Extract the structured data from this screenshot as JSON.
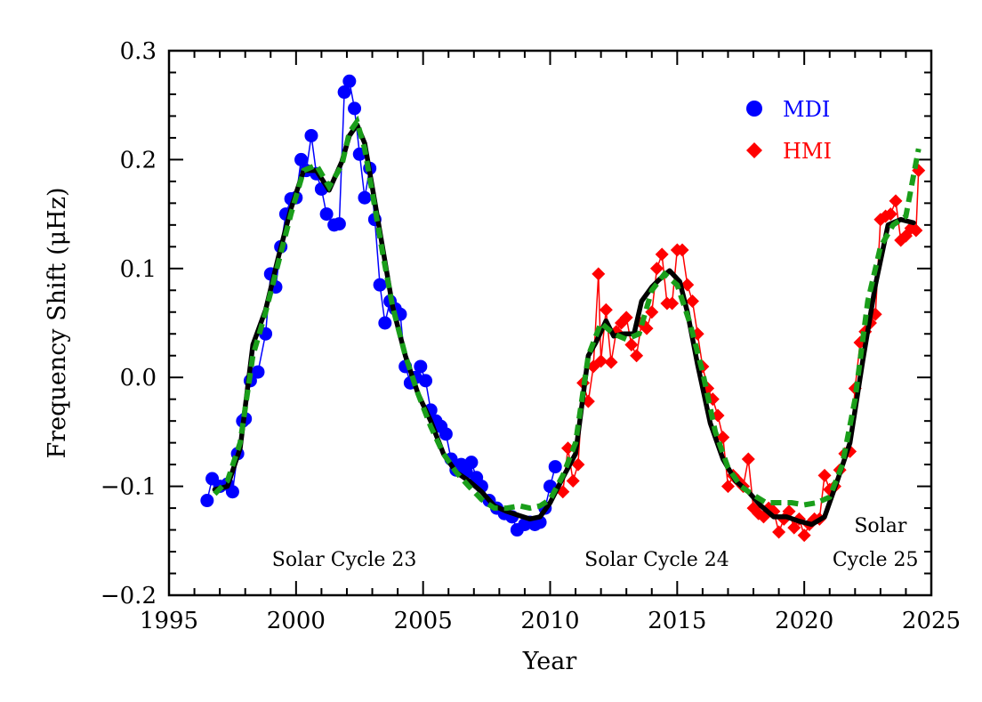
{
  "chart_data": {
    "type": "line",
    "xlabel": "Year",
    "ylabel": "Frequency Shift (μHz)",
    "xlim": [
      1995,
      2025
    ],
    "ylim": [
      -0.2,
      0.3
    ],
    "x_ticks": [
      1995,
      2000,
      2005,
      2010,
      2015,
      2020,
      2025
    ],
    "x_tick_labels": [
      "1995",
      "2000",
      "2005",
      "2010",
      "2015",
      "2020",
      "2025"
    ],
    "y_ticks": [
      -0.2,
      -0.1,
      0.0,
      0.1,
      0.2,
      0.3
    ],
    "y_tick_labels": [
      "−0.2",
      "−0.1",
      "0.0",
      "0.1",
      "0.2",
      "0.3"
    ],
    "grid": false,
    "legend_position": "top-right",
    "annotations": [
      {
        "text": "Solar Cycle 23",
        "x": 2001.9,
        "y": -0.173
      },
      {
        "text": "Solar Cycle 24",
        "x": 2014.2,
        "y": -0.173
      },
      {
        "text": "Solar",
        "x": 2023.0,
        "y": -0.142
      },
      {
        "text": "Cycle 25",
        "x": 2022.8,
        "y": -0.173
      }
    ],
    "series": [
      {
        "name": "MDI",
        "color": "#0000ff",
        "marker": "circle",
        "x": [
          1996.5,
          1996.7,
          1997.0,
          1997.3,
          1997.5,
          1997.7,
          1997.9,
          1998.0,
          1998.2,
          1998.5,
          1998.8,
          1999.0,
          1999.2,
          1999.4,
          1999.6,
          1999.8,
          2000.0,
          2000.2,
          2000.4,
          2000.6,
          2000.8,
          2001.0,
          2001.2,
          2001.5,
          2001.7,
          2001.9,
          2002.1,
          2002.3,
          2002.5,
          2002.7,
          2002.9,
          2003.1,
          2003.3,
          2003.5,
          2003.7,
          2003.9,
          2004.1,
          2004.3,
          2004.5,
          2004.7,
          2004.9,
          2005.1,
          2005.3,
          2005.5,
          2005.7,
          2005.9,
          2006.1,
          2006.3,
          2006.5,
          2006.7,
          2006.9,
          2007.1,
          2007.3,
          2007.6,
          2007.9,
          2008.2,
          2008.5,
          2008.7,
          2009.0,
          2009.2,
          2009.4,
          2009.6,
          2009.8,
          2010.0,
          2010.2
        ],
        "y": [
          -0.113,
          -0.093,
          -0.1,
          -0.098,
          -0.105,
          -0.07,
          -0.04,
          -0.038,
          -0.003,
          0.005,
          0.04,
          0.095,
          0.083,
          0.12,
          0.15,
          0.164,
          0.165,
          0.2,
          0.19,
          0.222,
          0.187,
          0.173,
          0.15,
          0.14,
          0.141,
          0.262,
          0.272,
          0.247,
          0.205,
          0.165,
          0.192,
          0.145,
          0.085,
          0.05,
          0.07,
          0.063,
          0.058,
          0.01,
          -0.005,
          0.0,
          0.01,
          -0.003,
          -0.03,
          -0.04,
          -0.045,
          -0.052,
          -0.075,
          -0.085,
          -0.08,
          -0.087,
          -0.078,
          -0.092,
          -0.1,
          -0.113,
          -0.12,
          -0.125,
          -0.128,
          -0.14,
          -0.135,
          -0.133,
          -0.135,
          -0.133,
          -0.12,
          -0.1,
          -0.082
        ]
      },
      {
        "name": "HMI",
        "color": "#ff0000",
        "marker": "diamond",
        "x": [
          2010.5,
          2010.7,
          2010.9,
          2011.1,
          2011.3,
          2011.5,
          2011.7,
          2011.9,
          2012.0,
          2012.2,
          2012.4,
          2012.6,
          2012.8,
          2013.0,
          2013.2,
          2013.4,
          2013.6,
          2013.8,
          2014.0,
          2014.2,
          2014.4,
          2014.6,
          2014.8,
          2015.0,
          2015.2,
          2015.4,
          2015.6,
          2015.8,
          2016.0,
          2016.2,
          2016.4,
          2016.6,
          2016.8,
          2017.0,
          2017.2,
          2017.4,
          2017.6,
          2017.8,
          2018.0,
          2018.2,
          2018.4,
          2018.6,
          2018.8,
          2019.0,
          2019.2,
          2019.4,
          2019.6,
          2019.8,
          2020.0,
          2020.2,
          2020.4,
          2020.6,
          2020.8,
          2021.0,
          2021.2,
          2021.4,
          2021.6,
          2021.8,
          2022.0,
          2022.2,
          2022.4,
          2022.6,
          2022.8,
          2023.0,
          2023.2,
          2023.4,
          2023.6,
          2023.8,
          2024.0,
          2024.2,
          2024.4,
          2024.5
        ],
        "y": [
          -0.105,
          -0.065,
          -0.095,
          -0.08,
          -0.005,
          -0.022,
          0.01,
          0.095,
          0.015,
          0.062,
          0.014,
          0.042,
          0.05,
          0.055,
          0.03,
          0.02,
          0.05,
          0.045,
          0.06,
          0.1,
          0.113,
          0.068,
          0.068,
          0.117,
          0.117,
          0.085,
          0.07,
          0.04,
          0.01,
          -0.01,
          -0.02,
          -0.035,
          -0.055,
          -0.1,
          -0.09,
          -0.095,
          -0.1,
          -0.075,
          -0.12,
          -0.125,
          -0.128,
          -0.12,
          -0.123,
          -0.142,
          -0.13,
          -0.123,
          -0.138,
          -0.13,
          -0.145,
          -0.135,
          -0.13,
          -0.13,
          -0.09,
          -0.103,
          -0.1,
          -0.085,
          -0.07,
          -0.068,
          -0.01,
          0.032,
          0.042,
          0.05,
          0.058,
          0.145,
          0.148,
          0.15,
          0.162,
          0.126,
          0.13,
          0.137,
          0.135,
          0.19
        ]
      },
      {
        "name": "",
        "color": "#000000",
        "style": "solid",
        "x": [
          1996.8,
          1997.3,
          1997.8,
          1998.3,
          1998.8,
          1999.3,
          1999.8,
          2000.3,
          2000.8,
          2001.3,
          2001.8,
          2002.1,
          2002.4,
          2002.7,
          2003.0,
          2003.4,
          2003.8,
          2004.3,
          2004.8,
          2005.3,
          2005.8,
          2006.3,
          2006.8,
          2007.3,
          2007.8,
          2008.3,
          2008.8,
          2009.2,
          2009.6,
          2010.0,
          2010.5,
          2011.0,
          2011.5,
          2011.8,
          2012.2,
          2012.5,
          2012.9,
          2013.3,
          2013.6,
          2014.0,
          2014.3,
          2014.7,
          2015.1,
          2015.4,
          2015.8,
          2016.3,
          2016.8,
          2017.3,
          2017.8,
          2018.3,
          2018.8,
          2019.3,
          2019.8,
          2020.3,
          2020.8,
          2021.3,
          2021.8,
          2022.3,
          2022.8,
          2023.3,
          2023.8,
          2024.3
        ],
        "y": [
          -0.103,
          -0.1,
          -0.065,
          0.03,
          0.062,
          0.11,
          0.155,
          0.19,
          0.19,
          0.172,
          0.198,
          0.222,
          0.232,
          0.215,
          0.175,
          0.12,
          0.065,
          0.02,
          -0.015,
          -0.04,
          -0.07,
          -0.087,
          -0.095,
          -0.105,
          -0.118,
          -0.123,
          -0.127,
          -0.13,
          -0.128,
          -0.115,
          -0.092,
          -0.07,
          0.02,
          0.032,
          0.052,
          0.038,
          0.04,
          0.04,
          0.07,
          0.083,
          0.09,
          0.098,
          0.088,
          0.06,
          0.012,
          -0.042,
          -0.075,
          -0.095,
          -0.105,
          -0.118,
          -0.128,
          -0.128,
          -0.132,
          -0.135,
          -0.128,
          -0.095,
          -0.06,
          0.015,
          0.085,
          0.14,
          0.145,
          0.142
        ]
      },
      {
        "name": "",
        "color": "#1a9e1a",
        "style": "dashed",
        "x": [
          1996.8,
          1997.3,
          1997.8,
          1998.3,
          1998.8,
          1999.3,
          1999.8,
          2000.3,
          2000.8,
          2001.3,
          2001.8,
          2002.1,
          2002.4,
          2002.7,
          2003.0,
          2003.4,
          2003.8,
          2004.3,
          2004.8,
          2005.3,
          2005.8,
          2006.3,
          2006.8,
          2007.3,
          2007.8,
          2008.3,
          2008.8,
          2009.2,
          2009.6,
          2010.0,
          2010.5,
          2011.0,
          2011.5,
          2012.0,
          2012.5,
          2013.0,
          2013.5,
          2014.0,
          2014.5,
          2015.0,
          2015.5,
          2016.0,
          2016.5,
          2017.0,
          2017.5,
          2018.0,
          2018.5,
          2019.0,
          2019.5,
          2020.0,
          2020.5,
          2021.0,
          2021.5,
          2022.0,
          2022.5,
          2023.0,
          2023.5,
          2024.0,
          2024.5
        ],
        "y": [
          -0.107,
          -0.095,
          -0.06,
          0.02,
          0.06,
          0.105,
          0.15,
          0.19,
          0.195,
          0.175,
          0.195,
          0.225,
          0.235,
          0.21,
          0.17,
          0.115,
          0.065,
          0.02,
          -0.015,
          -0.045,
          -0.07,
          -0.087,
          -0.1,
          -0.112,
          -0.12,
          -0.12,
          -0.118,
          -0.12,
          -0.118,
          -0.112,
          -0.09,
          -0.06,
          0.02,
          0.05,
          0.04,
          0.035,
          0.04,
          0.08,
          0.095,
          0.085,
          0.05,
          0.005,
          -0.05,
          -0.083,
          -0.1,
          -0.108,
          -0.115,
          -0.115,
          -0.115,
          -0.117,
          -0.115,
          -0.11,
          -0.08,
          -0.02,
          0.07,
          0.12,
          0.14,
          0.148,
          0.21
        ]
      }
    ]
  }
}
